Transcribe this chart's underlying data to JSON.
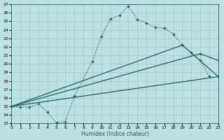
{
  "xlabel": "Humidex (Indice chaleur)",
  "bg_color": "#bde0e0",
  "grid_color": "#9ecece",
  "line_color": "#1c5f5f",
  "xlim": [
    0,
    23
  ],
  "ylim": [
    13,
    27
  ],
  "xticks": [
    0,
    1,
    2,
    3,
    4,
    5,
    6,
    7,
    8,
    9,
    10,
    11,
    12,
    13,
    14,
    15,
    16,
    17,
    18,
    19,
    20,
    21,
    22,
    23
  ],
  "yticks": [
    13,
    14,
    15,
    16,
    17,
    18,
    19,
    20,
    21,
    22,
    23,
    24,
    25,
    26,
    27
  ],
  "curve1_x": [
    0,
    1,
    2,
    3,
    4,
    5,
    6,
    7,
    9,
    10,
    11,
    12,
    13,
    14,
    15,
    16,
    17,
    18,
    19,
    20,
    21,
    22
  ],
  "curve1_y": [
    15,
    14.9,
    14.9,
    15.3,
    14.3,
    13.1,
    13.2,
    16.2,
    20.3,
    23.2,
    25.3,
    25.7,
    26.8,
    25.2,
    24.8,
    24.3,
    24.2,
    23.5,
    22.2,
    21.3,
    20.4,
    18.5
  ],
  "line2_x": [
    0,
    23
  ],
  "line2_y": [
    15,
    18.5
  ],
  "line3_x": [
    0,
    21,
    23
  ],
  "line3_y": [
    15,
    21.2,
    20.4
  ],
  "line4_x": [
    0,
    19,
    23
  ],
  "line4_y": [
    15,
    22.2,
    18.5
  ]
}
